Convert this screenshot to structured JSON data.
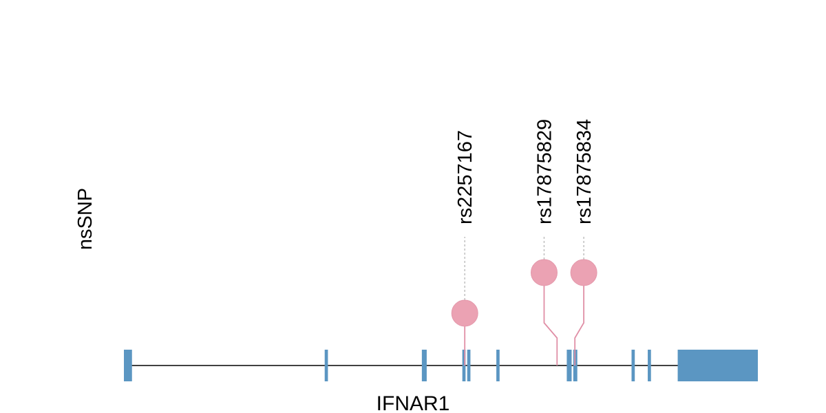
{
  "track_label": "nsSNP",
  "gene": {
    "name": "IFNAR1",
    "line_color": "#000000",
    "exon_color": "#5b96c2",
    "exons": [
      {
        "start": 0,
        "end": 10
      },
      {
        "start": 248,
        "end": 252
      },
      {
        "start": 368,
        "end": 374
      },
      {
        "start": 418,
        "end": 422
      },
      {
        "start": 424,
        "end": 428
      },
      {
        "start": 460,
        "end": 464
      },
      {
        "start": 547,
        "end": 553
      },
      {
        "start": 555,
        "end": 560
      },
      {
        "start": 627,
        "end": 631
      },
      {
        "start": 647,
        "end": 651
      },
      {
        "start": 684,
        "end": 783
      }
    ],
    "span": [
      0,
      783
    ]
  },
  "snps": [
    {
      "id": "rs2257167",
      "pos": 421,
      "level": 1,
      "label_pos": 421
    },
    {
      "id": "rs17875829",
      "pos": 535,
      "level": 2,
      "label_pos": 519
    },
    {
      "id": "rs17875834",
      "pos": 557,
      "level": 2,
      "label_pos": 568
    }
  ],
  "snp_color": "#eba2b3",
  "stem_color": "#e08fa6",
  "guide_color": "#bbbbbb"
}
